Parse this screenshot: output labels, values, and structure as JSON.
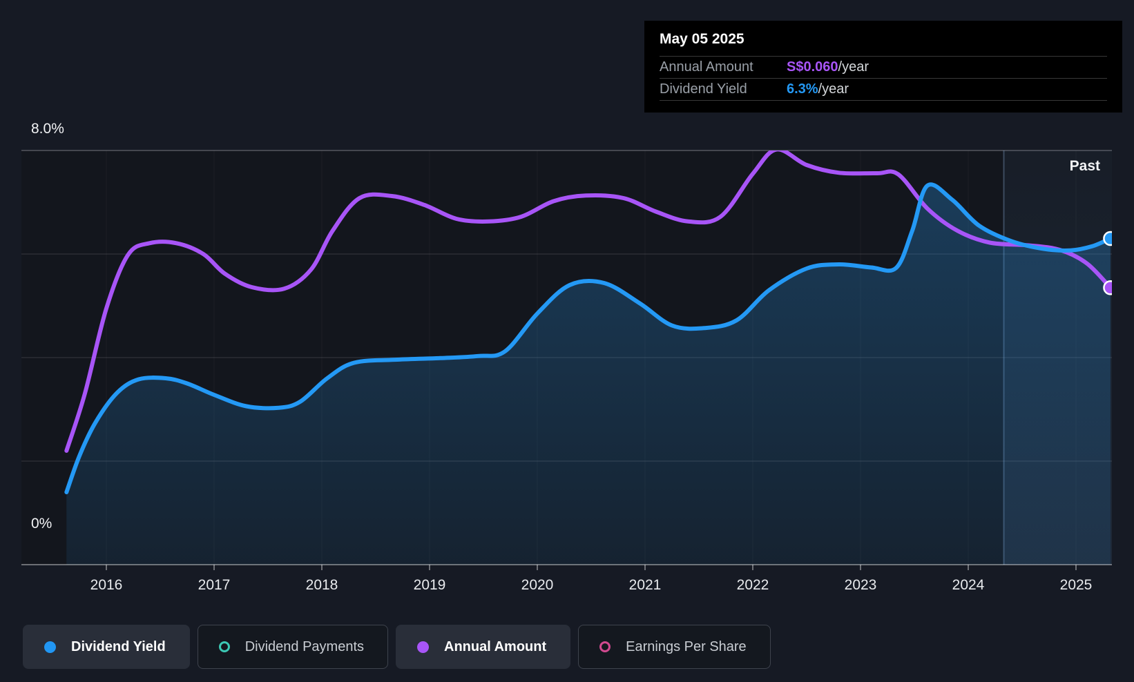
{
  "tooltip": {
    "date": "May 05 2025",
    "rows": [
      {
        "label": "Annual Amount",
        "value": "S$0.060",
        "suffix": "/year",
        "value_color": "#a855f7"
      },
      {
        "label": "Dividend Yield",
        "value": "6.3%",
        "suffix": "/year",
        "value_color": "#2499f5"
      }
    ]
  },
  "axis": {
    "y_top_label": "8.0%",
    "y_bottom_label": "0%"
  },
  "legend": [
    {
      "label": "Dividend Yield",
      "marker": "filled",
      "color": "#2196f3",
      "active": true
    },
    {
      "label": "Dividend Payments",
      "marker": "ring",
      "color": "#3cc8b4",
      "active": false
    },
    {
      "label": "Annual Amount",
      "marker": "filled",
      "color": "#a855f7",
      "active": true
    },
    {
      "label": "Earnings Per Share",
      "marker": "ring",
      "color": "#d1498f",
      "active": false
    }
  ],
  "chart_data": {
    "type": "line",
    "x_axis": {
      "tick_years": [
        2016,
        2017,
        2018,
        2019,
        2020,
        2021,
        2022,
        2023,
        2024,
        2025
      ]
    },
    "y_axis": {
      "min": 0,
      "max": 8,
      "unit": "%",
      "gridline_values": [
        0,
        2,
        4,
        6,
        8
      ],
      "labeled_ticks": [
        "8.0%",
        "0%"
      ]
    },
    "past_region": {
      "label": "Past",
      "start_year": 2024.33
    },
    "series": [
      {
        "name": "Dividend Yield",
        "color": "#2499f5",
        "style": "area",
        "unit": "%",
        "points": [
          [
            2015.63,
            1.4
          ],
          [
            2015.75,
            2.1
          ],
          [
            2015.9,
            2.75
          ],
          [
            2016.1,
            3.32
          ],
          [
            2016.3,
            3.58
          ],
          [
            2016.55,
            3.6
          ],
          [
            2016.75,
            3.5
          ],
          [
            2017.0,
            3.28
          ],
          [
            2017.3,
            3.06
          ],
          [
            2017.6,
            3.03
          ],
          [
            2017.8,
            3.15
          ],
          [
            2018.05,
            3.6
          ],
          [
            2018.3,
            3.9
          ],
          [
            2018.7,
            3.96
          ],
          [
            2019.1,
            3.99
          ],
          [
            2019.45,
            4.03
          ],
          [
            2019.7,
            4.12
          ],
          [
            2020.0,
            4.85
          ],
          [
            2020.3,
            5.4
          ],
          [
            2020.62,
            5.44
          ],
          [
            2020.95,
            5.05
          ],
          [
            2021.25,
            4.62
          ],
          [
            2021.55,
            4.57
          ],
          [
            2021.85,
            4.72
          ],
          [
            2022.15,
            5.3
          ],
          [
            2022.5,
            5.72
          ],
          [
            2022.8,
            5.8
          ],
          [
            2023.1,
            5.74
          ],
          [
            2023.33,
            5.73
          ],
          [
            2023.48,
            6.45
          ],
          [
            2023.62,
            7.32
          ],
          [
            2023.85,
            7.05
          ],
          [
            2024.1,
            6.55
          ],
          [
            2024.4,
            6.25
          ],
          [
            2024.7,
            6.1
          ],
          [
            2024.95,
            6.07
          ],
          [
            2025.15,
            6.15
          ],
          [
            2025.32,
            6.3
          ]
        ],
        "latest": {
          "date": "May 05 2025",
          "value": "6.3%/year"
        }
      },
      {
        "name": "Annual Amount",
        "color": "#a855f7",
        "style": "line",
        "unit": "S$",
        "note": "Trace plotted on shared canvas (scaled to % axis positions)",
        "points": [
          [
            2015.63,
            2.2
          ],
          [
            2015.8,
            3.3
          ],
          [
            2016.0,
            4.95
          ],
          [
            2016.2,
            5.98
          ],
          [
            2016.4,
            6.21
          ],
          [
            2016.65,
            6.21
          ],
          [
            2016.9,
            6.0
          ],
          [
            2017.1,
            5.62
          ],
          [
            2017.35,
            5.36
          ],
          [
            2017.65,
            5.33
          ],
          [
            2017.9,
            5.7
          ],
          [
            2018.1,
            6.45
          ],
          [
            2018.35,
            7.08
          ],
          [
            2018.65,
            7.12
          ],
          [
            2018.95,
            6.95
          ],
          [
            2019.25,
            6.68
          ],
          [
            2019.55,
            6.63
          ],
          [
            2019.85,
            6.72
          ],
          [
            2020.15,
            7.02
          ],
          [
            2020.45,
            7.13
          ],
          [
            2020.8,
            7.08
          ],
          [
            2021.1,
            6.82
          ],
          [
            2021.4,
            6.63
          ],
          [
            2021.7,
            6.72
          ],
          [
            2022.0,
            7.55
          ],
          [
            2022.22,
            8.02
          ],
          [
            2022.5,
            7.72
          ],
          [
            2022.8,
            7.57
          ],
          [
            2023.15,
            7.56
          ],
          [
            2023.35,
            7.54
          ],
          [
            2023.62,
            6.88
          ],
          [
            2023.9,
            6.45
          ],
          [
            2024.2,
            6.22
          ],
          [
            2024.55,
            6.17
          ],
          [
            2024.85,
            6.08
          ],
          [
            2025.1,
            5.82
          ],
          [
            2025.32,
            5.35
          ]
        ],
        "latest": {
          "date": "May 05 2025",
          "value": "S$0.060/year"
        }
      }
    ]
  },
  "colors": {
    "page_bg": "#161a24",
    "plot_bg": "#13161d",
    "tooltip_bg": "#000000",
    "grid_inner": "rgba(255,255,255,0.10)",
    "grid_top": "rgba(255,255,255,0.28)",
    "axis_line": "rgba(255,255,255,0.38)",
    "past_overlay": "rgba(96,150,210,0.12)",
    "past_divider": "rgba(150,190,235,0.30)"
  }
}
